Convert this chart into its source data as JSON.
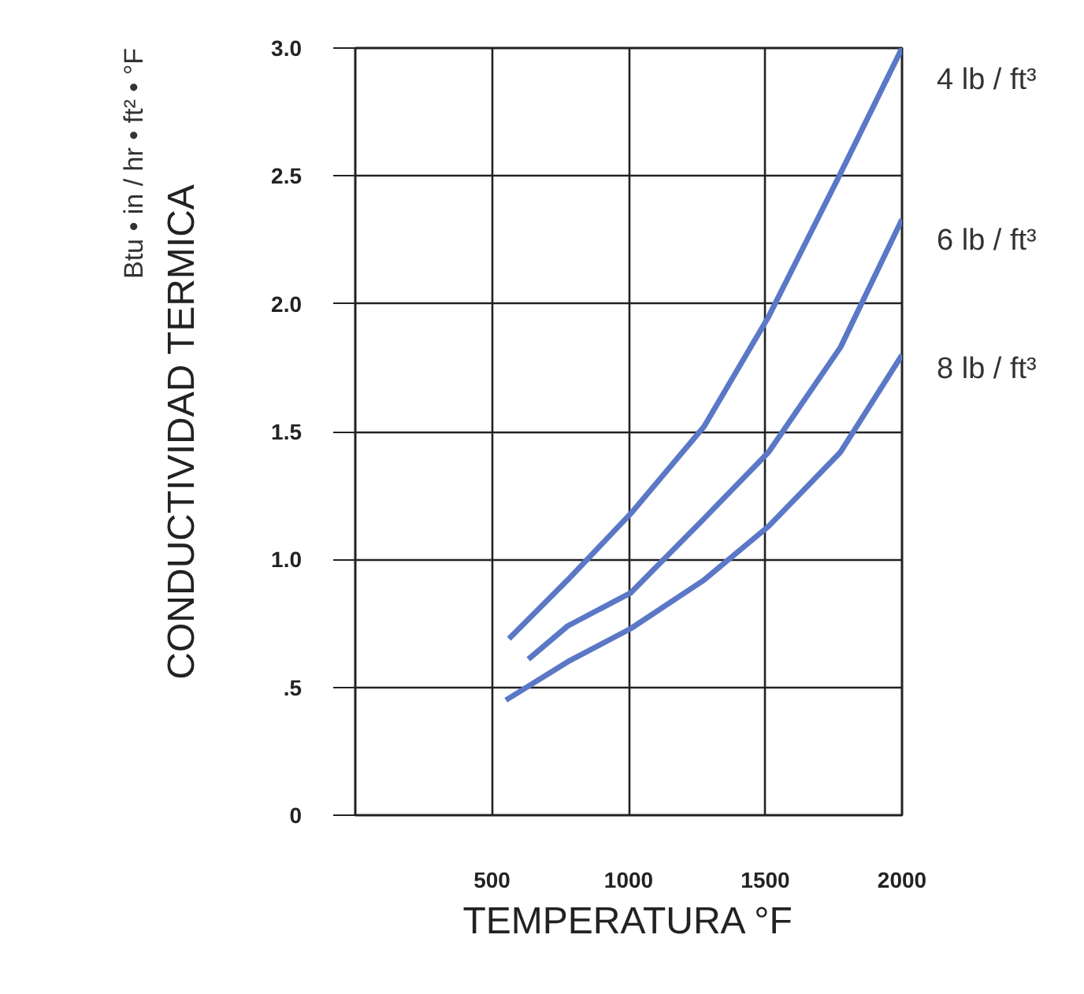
{
  "chart_data": {
    "type": "line",
    "xlabel": "TEMPERATURA °F",
    "ylabel": "CONDUCTIVIDAD TERMICA",
    "annotations": [
      "Btu • in / hr • ft² • °F"
    ],
    "xlim": [
      0,
      2000
    ],
    "xticks": [
      {
        "value": 0,
        "label": null
      },
      500,
      1000,
      1500,
      2000
    ],
    "ylim": [
      0,
      3.0
    ],
    "yticks": [
      0,
      {
        "value": 0.5,
        "label": ".5"
      },
      {
        "value": 1.0,
        "label": "1.0"
      },
      {
        "value": 1.5,
        "label": "1.5"
      },
      {
        "value": 2.0,
        "label": "2.0"
      },
      {
        "value": 2.5,
        "label": "2.5"
      },
      {
        "value": 3.0,
        "label": "3.0"
      }
    ],
    "grid": true,
    "marker": "none",
    "line_style": "solid",
    "series": [
      {
        "name": "4 lb / ft³",
        "color": "#5a78c6",
        "x": [
          562,
          777,
          1008,
          1276,
          1512,
          1775,
          2000
        ],
        "values": [
          0.69,
          0.92,
          1.18,
          1.52,
          1.95,
          2.51,
          3.0
        ]
      },
      {
        "name": "6 lb / ft³",
        "color": "#5a78c6",
        "x": [
          633,
          777,
          1008,
          1276,
          1512,
          1775,
          2000
        ],
        "values": [
          0.61,
          0.74,
          0.87,
          1.16,
          1.42,
          1.83,
          2.33
        ]
      },
      {
        "name": "8 lb / ft³",
        "color": "#5a78c6",
        "x": [
          551,
          777,
          1008,
          1276,
          1512,
          1775,
          2000
        ],
        "values": [
          0.45,
          0.6,
          0.73,
          0.92,
          1.13,
          1.42,
          1.8
        ]
      }
    ]
  }
}
